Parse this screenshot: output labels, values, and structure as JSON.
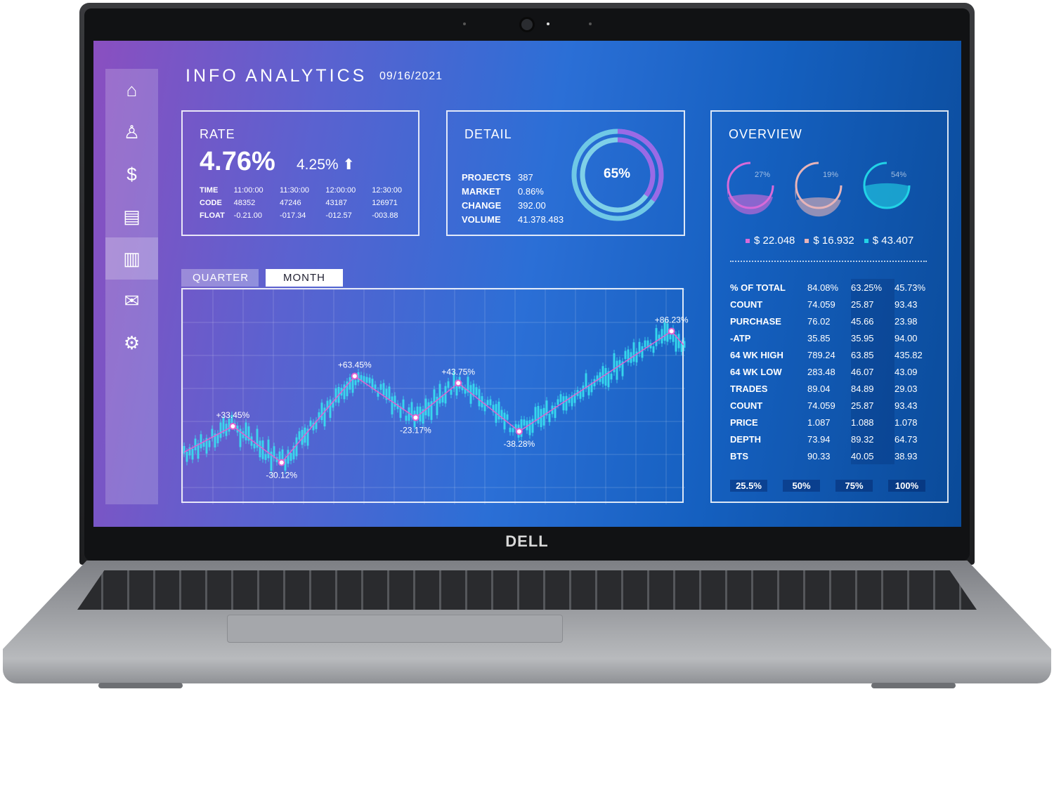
{
  "device": {
    "brand_logo": "DELL"
  },
  "header": {
    "title": "INFO ANALYTICS",
    "date": "09/16/2021"
  },
  "sidebar": {
    "items": [
      {
        "icon": "home-icon"
      },
      {
        "icon": "user-icon"
      },
      {
        "icon": "invoice-icon"
      },
      {
        "icon": "clipboard-icon"
      },
      {
        "icon": "bar-chart-icon",
        "active": true
      },
      {
        "icon": "mail-icon"
      },
      {
        "icon": "gear-icon"
      }
    ]
  },
  "rate": {
    "heading": "RATE",
    "value": "4.76%",
    "change": "4.25%",
    "change_direction": "up",
    "rows": [
      [
        "TIME",
        "11:00:00",
        "11:30:00",
        "12:00:00",
        "12:30:00"
      ],
      [
        "CODE",
        "48352",
        "47246",
        "43187",
        "126971"
      ],
      [
        "FLOAT",
        "-0.21.00",
        "-017.34",
        "-012.57",
        "-003.88"
      ]
    ]
  },
  "detail": {
    "heading": "DETAIL",
    "percent": "65%",
    "percent_value": 65,
    "rows": [
      [
        "PROJECTS",
        "387"
      ],
      [
        "MARKET",
        "0.86%"
      ],
      [
        "CHANGE",
        "392.00"
      ],
      [
        "VOLUME",
        "41.378.483"
      ]
    ]
  },
  "overview": {
    "heading": "OVERVIEW",
    "gauges": [
      {
        "label": "27%",
        "value": 27,
        "amount": "$ 22.048",
        "color": "#d86ad8"
      },
      {
        "label": "19%",
        "value": 19,
        "amount": "$ 16.932",
        "color": "#e8b4b8"
      },
      {
        "label": "54%",
        "value": 54,
        "amount": "$ 43.407",
        "color": "#22d3e6"
      }
    ],
    "rows": [
      [
        "% OF TOTAL",
        "84.08%",
        "63.25%",
        "45.73%"
      ],
      [
        "COUNT",
        "74.059",
        "25.87",
        "93.43"
      ],
      [
        "PURCHASE",
        "76.02",
        "45.66",
        "23.98"
      ],
      [
        "-ATP",
        "35.85",
        "35.95",
        "94.00"
      ],
      [
        "64 WK HIGH",
        "789.24",
        "63.85",
        "435.82"
      ],
      [
        "64 WK LOW",
        "283.48",
        "46.07",
        "43.09"
      ],
      [
        "TRADES",
        "89.04",
        "84.89",
        "29.03"
      ],
      [
        "COUNT",
        "74.059",
        "25.87",
        "93.43"
      ],
      [
        "PRICE",
        "1.087",
        "1.088",
        "1.078"
      ],
      [
        "DEPTH",
        "73.94",
        "89.32",
        "64.73"
      ],
      [
        "BTS",
        "90.33",
        "40.05",
        "38.93"
      ]
    ],
    "scale": [
      "25.5%",
      "50%",
      "75%",
      "100%"
    ]
  },
  "chart_tabs": [
    {
      "label": "QUARTER",
      "active": false
    },
    {
      "label": "MONTH",
      "active": true
    }
  ],
  "chart_data": {
    "type": "line",
    "grid": true,
    "line_color": "#e060d0",
    "candle_color": "#38e0f0",
    "x": [
      0,
      8,
      16,
      28,
      38,
      45,
      55,
      80,
      82
    ],
    "values": [
      18,
      33,
      12,
      62,
      38,
      58,
      30,
      88,
      80
    ],
    "labels": [
      "",
      "+33.45%",
      "-30.12%",
      "+63.45%",
      "-23.17%",
      "+43.75%",
      "-38.28%",
      "+86.23%",
      ""
    ]
  }
}
